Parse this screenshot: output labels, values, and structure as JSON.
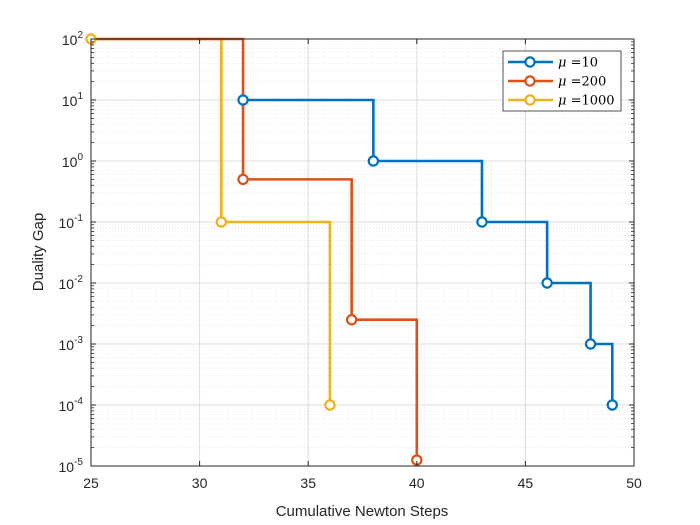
{
  "chart_data": {
    "type": "line",
    "xlabel": "Cumulative Newton Steps",
    "ylabel": "Duality Gap",
    "xlim": [
      25,
      50
    ],
    "ylim": [
      1e-05,
      100
    ],
    "yscale": "log",
    "grid": true,
    "minor_grid": true,
    "legend_position": "top-right",
    "x_ticks": [
      {
        "value": 25,
        "label": "25"
      },
      {
        "value": 30,
        "label": "30"
      },
      {
        "value": 35,
        "label": "35"
      },
      {
        "value": 40,
        "label": "40"
      },
      {
        "value": 45,
        "label": "45"
      },
      {
        "value": 50,
        "label": "50"
      }
    ],
    "y_ticks": [
      {
        "value": 1e-05,
        "base": "10",
        "exp": "-5"
      },
      {
        "value": 0.0001,
        "base": "10",
        "exp": "-4"
      },
      {
        "value": 0.001,
        "base": "10",
        "exp": "-3"
      },
      {
        "value": 0.01,
        "base": "10",
        "exp": "-2"
      },
      {
        "value": 0.1,
        "base": "10",
        "exp": "-1"
      },
      {
        "value": 1,
        "base": "10",
        "exp": "0"
      },
      {
        "value": 10,
        "base": "10",
        "exp": "1"
      },
      {
        "value": 100,
        "base": "10",
        "exp": "2"
      }
    ],
    "series": [
      {
        "name": "μ = 10",
        "legend_symbol": "μ",
        "legend_value": "=10",
        "color": "#0072BD",
        "x": [
          32,
          38,
          43,
          46,
          48,
          49
        ],
        "y": [
          10,
          1,
          0.1,
          0.01,
          0.001,
          0.0001
        ]
      },
      {
        "name": "μ = 200",
        "legend_symbol": "μ",
        "legend_value": "=200",
        "color": "#D95319",
        "x": [
          25,
          32,
          37,
          40
        ],
        "y": [
          100,
          0.5,
          0.0025,
          1.25e-05
        ],
        "markers": [
          false,
          true,
          true,
          true
        ]
      },
      {
        "name": "μ = 1000",
        "legend_symbol": "μ",
        "legend_value": "=1000",
        "color": "#EDB120",
        "x": [
          25,
          31,
          36
        ],
        "y": [
          100,
          0.1,
          0.0001
        ]
      }
    ]
  }
}
